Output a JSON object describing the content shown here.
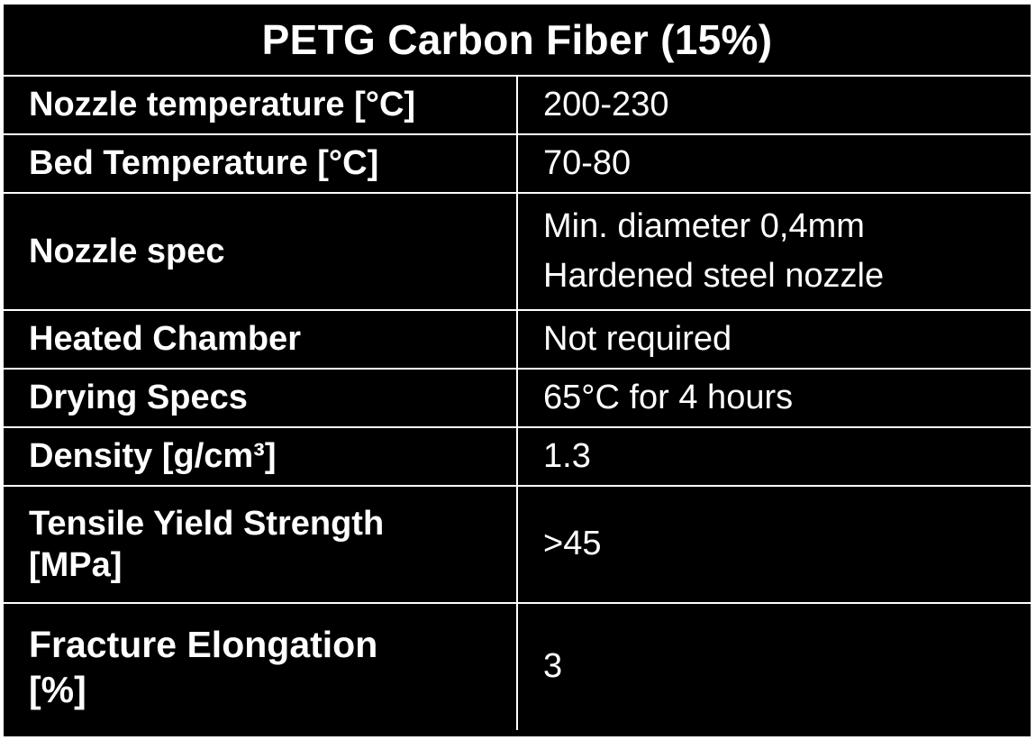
{
  "table": {
    "title": "PETG Carbon Fiber (15%)",
    "rows": [
      {
        "label": "Nozzle temperature [°C]",
        "value": "200-230"
      },
      {
        "label": "Bed Temperature [°C]",
        "value": "70-80"
      },
      {
        "label": "Nozzle spec",
        "value": "Min. diameter 0,4mm\nHardened steel nozzle"
      },
      {
        "label": "Heated Chamber",
        "value": "Not required"
      },
      {
        "label": "Drying Specs",
        "value": "65°C for 4 hours"
      },
      {
        "label": "Density [g/cm³]",
        "value": "1.3"
      },
      {
        "label": "Tensile Yield Strength\n[MPa]",
        "value": ">45"
      },
      {
        "label": "Fracture Elongation\n[%]",
        "value": "3"
      }
    ]
  },
  "colors": {
    "background": "#000000",
    "text": "#ffffff",
    "grid": "#ffffff"
  }
}
